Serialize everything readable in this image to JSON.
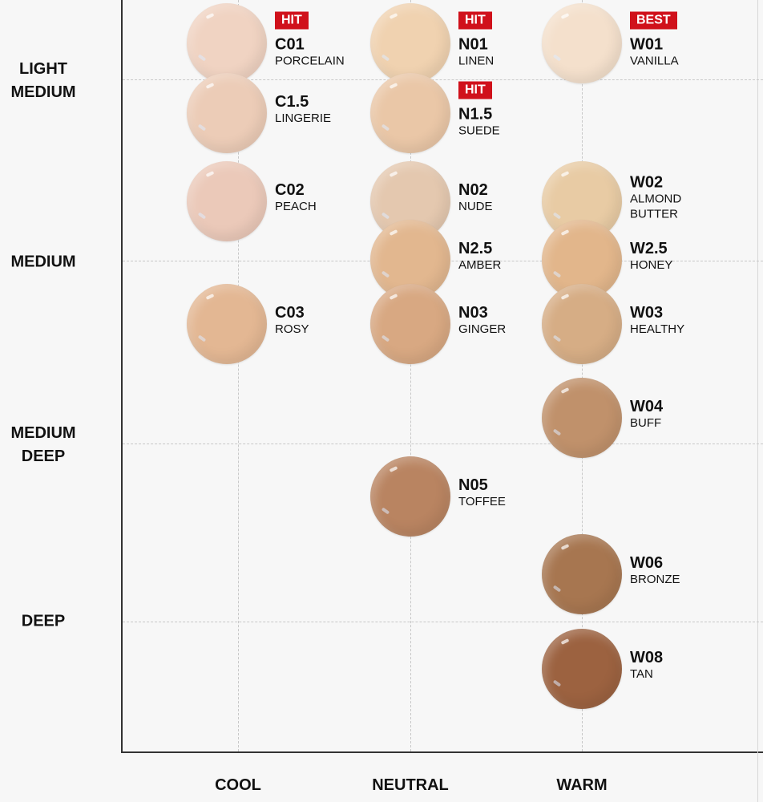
{
  "y_axis_labels": [
    "LIGHT\nMEDIUM",
    "MEDIUM",
    "MEDIUM\nDEEP",
    "DEEP"
  ],
  "x_axis_labels": [
    "COOL",
    "NEUTRAL",
    "WARM"
  ],
  "badge_color": "#d0111b",
  "shades": [
    {
      "code": "C01",
      "name": "PORCELAIN",
      "undertone": "COOL",
      "badge": "HIT",
      "color": "#f0d3c2"
    },
    {
      "code": "C1.5",
      "name": "LINGERIE",
      "undertone": "COOL",
      "badge": "",
      "color": "#ecccb7"
    },
    {
      "code": "C02",
      "name": "PEACH",
      "undertone": "COOL",
      "badge": "",
      "color": "#ebc9b9"
    },
    {
      "code": "C03",
      "name": "ROSY",
      "undertone": "COOL",
      "badge": "",
      "color": "#e3b793"
    },
    {
      "code": "N01",
      "name": "LINEN",
      "undertone": "NEUTRAL",
      "badge": "HIT",
      "color": "#f0d2b0"
    },
    {
      "code": "N1.5",
      "name": "SUEDE",
      "undertone": "NEUTRAL",
      "badge": "HIT",
      "color": "#eac7a7"
    },
    {
      "code": "N02",
      "name": "NUDE",
      "undertone": "NEUTRAL",
      "badge": "",
      "color": "#e4c8af"
    },
    {
      "code": "N2.5",
      "name": "AMBER",
      "undertone": "NEUTRAL",
      "badge": "",
      "color": "#e2b78f"
    },
    {
      "code": "N03",
      "name": "GINGER",
      "undertone": "NEUTRAL",
      "badge": "",
      "color": "#d8a882"
    },
    {
      "code": "N05",
      "name": "TOFFEE",
      "undertone": "NEUTRAL",
      "badge": "",
      "color": "#b98461"
    },
    {
      "code": "W01",
      "name": "VANILLA",
      "undertone": "WARM",
      "badge": "BEST",
      "color": "#f4e0cc"
    },
    {
      "code": "W02",
      "name": "ALMOND BUTTER",
      "undertone": "WARM",
      "badge": "",
      "color": "#e8cba4"
    },
    {
      "code": "W2.5",
      "name": "HONEY",
      "undertone": "WARM",
      "badge": "",
      "color": "#e2b68b"
    },
    {
      "code": "W03",
      "name": "HEALTHY",
      "undertone": "WARM",
      "badge": "",
      "color": "#d6ad85"
    },
    {
      "code": "W04",
      "name": "BUFF",
      "undertone": "WARM",
      "badge": "",
      "color": "#c0916b"
    },
    {
      "code": "W06",
      "name": "BRONZE",
      "undertone": "WARM",
      "badge": "",
      "color": "#a77650"
    },
    {
      "code": "W08",
      "name": "TAN",
      "undertone": "WARM",
      "badge": "",
      "color": "#9c6240"
    }
  ]
}
